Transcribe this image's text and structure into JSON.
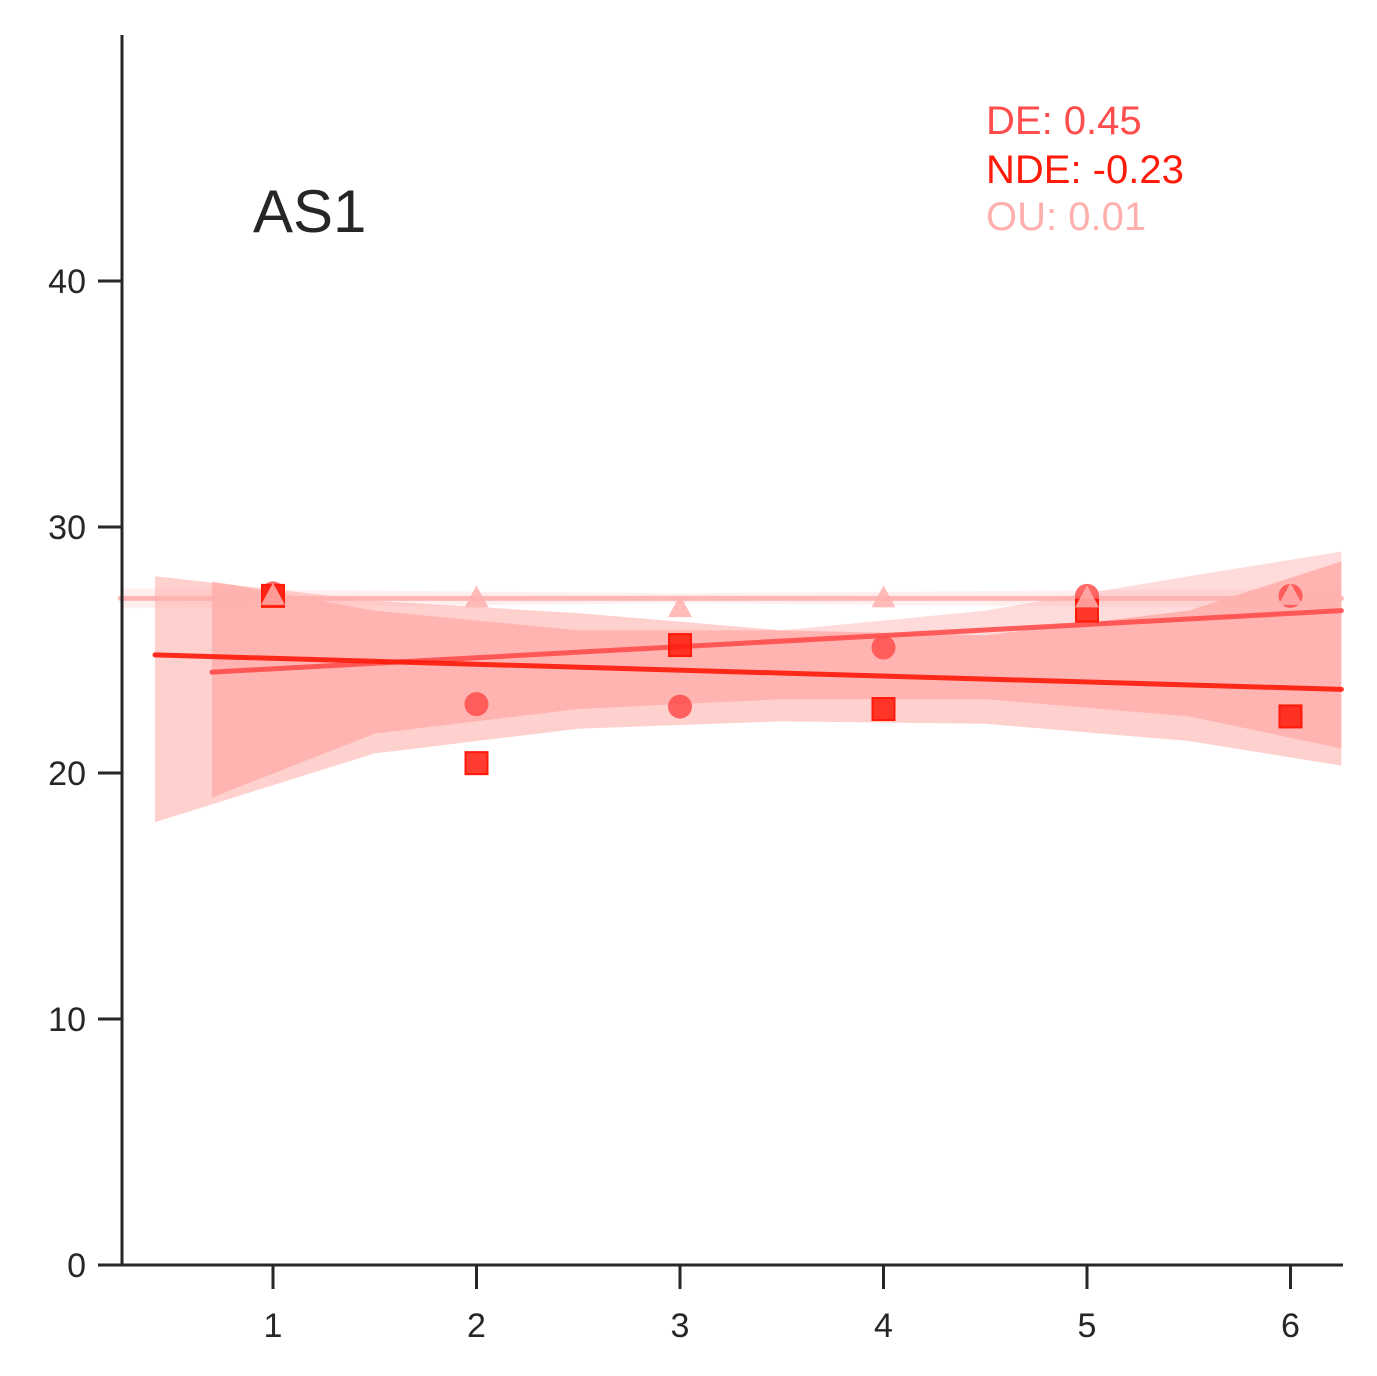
{
  "chart_data": {
    "type": "scatter",
    "panel_label": "AS1",
    "xlabel": "",
    "ylabel": "",
    "xlim": [
      0.25,
      6.25
    ],
    "ylim": [
      0,
      50
    ],
    "x_ticks": [
      1,
      2,
      3,
      4,
      5,
      6
    ],
    "y_ticks": [
      0,
      10,
      20,
      30,
      40
    ],
    "grid": false,
    "annotations": [
      {
        "text": "DE: 0.45",
        "color": "#ff4d4d"
      },
      {
        "text": "NDE: -0.23",
        "color": "#ff1a0a"
      },
      {
        "text": "OU: 0.01",
        "color": "#ffb0ae"
      }
    ],
    "series": [
      {
        "key": "DE",
        "marker": "circle",
        "color": "#ff4d4d",
        "x": [
          1,
          2,
          3,
          4,
          5,
          6
        ],
        "y": [
          27.3,
          22.8,
          22.7,
          25.1,
          27.2,
          27.2
        ],
        "fit": {
          "x0": 0.7,
          "x1": 6.25,
          "y0": 24.1,
          "y1": 26.6
        },
        "band": {
          "x": [
            0.7,
            1.5,
            2.5,
            3.5,
            4.5,
            5.5,
            6.25
          ],
          "upper": [
            27.8,
            26.6,
            25.8,
            25.8,
            26.6,
            28.0,
            29.0
          ],
          "lower": [
            19.0,
            21.6,
            22.6,
            23.0,
            23.0,
            22.3,
            21.0
          ]
        }
      },
      {
        "key": "NDE",
        "marker": "square",
        "color": "#ff1a0a",
        "x": [
          1,
          2,
          3,
          4,
          5,
          6
        ],
        "y": [
          27.2,
          20.4,
          25.2,
          22.6,
          26.6,
          22.3
        ],
        "fit": {
          "x0": 0.42,
          "x1": 6.25,
          "y0": 24.8,
          "y1": 23.4
        },
        "band": {
          "x": [
            0.42,
            1.5,
            2.5,
            3.5,
            4.5,
            5.5,
            6.25
          ],
          "upper": [
            28.0,
            27.0,
            26.5,
            25.8,
            25.6,
            26.6,
            28.6
          ],
          "lower": [
            18.0,
            20.8,
            21.8,
            22.1,
            22.0,
            21.3,
            20.3
          ]
        }
      },
      {
        "key": "OU",
        "marker": "triangle",
        "color": "#ffb0ae",
        "x": [
          1,
          2,
          3,
          4,
          5,
          6
        ],
        "y": [
          27.2,
          27.1,
          26.7,
          27.1,
          27.1,
          27.2
        ],
        "fit": {
          "x0": 0.25,
          "x1": 6.25,
          "y0": 27.1,
          "y1": 27.1
        },
        "band": {
          "x": [
            0.25,
            3.0,
            6.25
          ],
          "upper": [
            27.5,
            27.3,
            27.5
          ],
          "lower": [
            26.7,
            26.9,
            26.7
          ]
        }
      }
    ]
  }
}
